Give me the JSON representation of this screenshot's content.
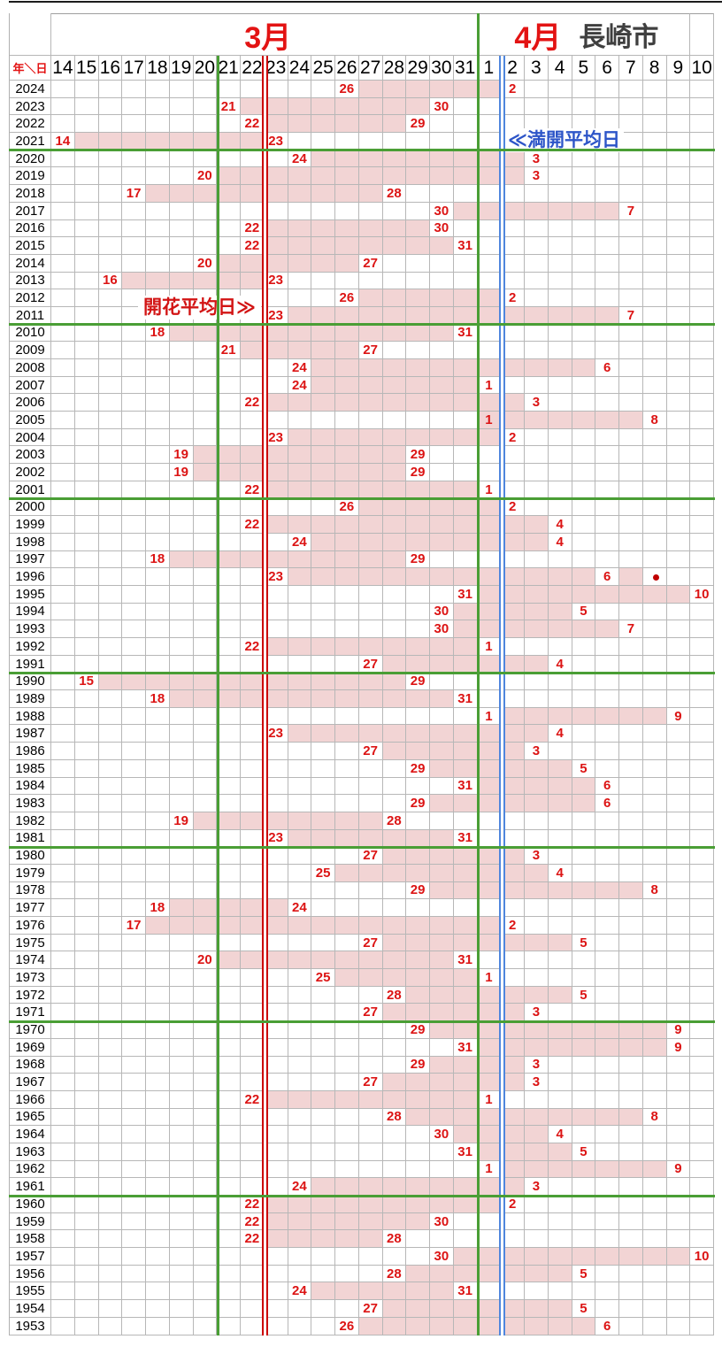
{
  "header": {
    "march": "3月",
    "april": "4月",
    "city": "長崎市",
    "corner": "年＼日"
  },
  "annotations": {
    "flowering_avg": "開花平均日≫",
    "full_bloom_avg": "≪満開平均日"
  },
  "colors": {
    "bar": "#f2d4d4",
    "number_red": "#dc1414",
    "grid": "#b7b7b7",
    "green_line": "#4a9e35",
    "red_line": "#cc0000",
    "blue_line": "#4f86dd",
    "blue_text": "#2d55c8",
    "month_red": "#e31313",
    "city_text": "#3f3f3f"
  },
  "chart_data": {
    "type": "range-bar calendar (flowering to full-bloom dates per year)",
    "title": "長崎市",
    "x_axis": {
      "march_days": [
        14,
        15,
        16,
        17,
        18,
        19,
        20,
        21,
        22,
        23,
        24,
        25,
        26,
        27,
        28,
        29,
        30,
        31
      ],
      "april_days": [
        1,
        2,
        3,
        4,
        5,
        6,
        7,
        8,
        9,
        10
      ]
    },
    "reference_lines": [
      {
        "name": "green-left",
        "after_date": "3/21",
        "style": "green",
        "from_table_top": false
      },
      {
        "name": "flowering-average",
        "after_date": "3/23",
        "style": "red-double",
        "from_table_top": false
      },
      {
        "name": "month-boundary",
        "after_date": "4/1",
        "style": "green",
        "from_table_top": true
      },
      {
        "name": "full-bloom-average",
        "after_date": "4/2",
        "style": "blue-double",
        "from_table_top": false
      }
    ],
    "decade_separators_below_year": [
      2021,
      2011,
      2001,
      1991,
      1981,
      1971,
      1961
    ],
    "extra_marker": {
      "year": 1996,
      "date": "4/8",
      "type": "red-dot"
    },
    "extra_bar_cells": [
      {
        "year": 2005,
        "date": "4/1"
      },
      {
        "year": 1996,
        "date": "4/7"
      }
    ],
    "rows": [
      {
        "year": 2024,
        "flowering": "3/26",
        "full_bloom": "4/2"
      },
      {
        "year": 2023,
        "flowering": "3/21",
        "full_bloom": "3/30"
      },
      {
        "year": 2022,
        "flowering": "3/22",
        "full_bloom": "3/29"
      },
      {
        "year": 2021,
        "flowering": "3/14",
        "full_bloom": "3/23"
      },
      {
        "year": 2020,
        "flowering": "3/24",
        "full_bloom": "4/3"
      },
      {
        "year": 2019,
        "flowering": "3/20",
        "full_bloom": "4/3"
      },
      {
        "year": 2018,
        "flowering": "3/17",
        "full_bloom": "3/28"
      },
      {
        "year": 2017,
        "flowering": "3/30",
        "full_bloom": "4/7"
      },
      {
        "year": 2016,
        "flowering": "3/22",
        "full_bloom": "3/30"
      },
      {
        "year": 2015,
        "flowering": "3/22",
        "full_bloom": "3/31"
      },
      {
        "year": 2014,
        "flowering": "3/20",
        "full_bloom": "3/27"
      },
      {
        "year": 2013,
        "flowering": "3/16",
        "full_bloom": "3/23"
      },
      {
        "year": 2012,
        "flowering": "3/26",
        "full_bloom": "4/2"
      },
      {
        "year": 2011,
        "flowering": "3/23",
        "full_bloom": "4/7"
      },
      {
        "year": 2010,
        "flowering": "3/18",
        "full_bloom": "3/31"
      },
      {
        "year": 2009,
        "flowering": "3/21",
        "full_bloom": "3/27"
      },
      {
        "year": 2008,
        "flowering": "3/24",
        "full_bloom": "4/6"
      },
      {
        "year": 2007,
        "flowering": "3/24",
        "full_bloom": "4/1"
      },
      {
        "year": 2006,
        "flowering": "3/22",
        "full_bloom": "4/3"
      },
      {
        "year": 2005,
        "flowering": "4/1",
        "full_bloom": "4/8"
      },
      {
        "year": 2004,
        "flowering": "3/23",
        "full_bloom": "4/2"
      },
      {
        "year": 2003,
        "flowering": "3/19",
        "full_bloom": "3/29"
      },
      {
        "year": 2002,
        "flowering": "3/19",
        "full_bloom": "3/29"
      },
      {
        "year": 2001,
        "flowering": "3/22",
        "full_bloom": "4/1"
      },
      {
        "year": 2000,
        "flowering": "3/26",
        "full_bloom": "4/2"
      },
      {
        "year": 1999,
        "flowering": "3/22",
        "full_bloom": "4/4"
      },
      {
        "year": 1998,
        "flowering": "3/24",
        "full_bloom": "4/4"
      },
      {
        "year": 1997,
        "flowering": "3/18",
        "full_bloom": "3/29"
      },
      {
        "year": 1996,
        "flowering": "3/23",
        "full_bloom": "4/6"
      },
      {
        "year": 1995,
        "flowering": "3/31",
        "full_bloom": "4/10"
      },
      {
        "year": 1994,
        "flowering": "3/30",
        "full_bloom": "4/5"
      },
      {
        "year": 1993,
        "flowering": "3/30",
        "full_bloom": "4/7"
      },
      {
        "year": 1992,
        "flowering": "3/22",
        "full_bloom": "4/1"
      },
      {
        "year": 1991,
        "flowering": "3/27",
        "full_bloom": "4/4"
      },
      {
        "year": 1990,
        "flowering": "3/15",
        "full_bloom": "3/29"
      },
      {
        "year": 1989,
        "flowering": "3/18",
        "full_bloom": "3/31"
      },
      {
        "year": 1988,
        "flowering": "4/1",
        "full_bloom": "4/9"
      },
      {
        "year": 1987,
        "flowering": "3/23",
        "full_bloom": "4/4"
      },
      {
        "year": 1986,
        "flowering": "3/27",
        "full_bloom": "4/3"
      },
      {
        "year": 1985,
        "flowering": "3/29",
        "full_bloom": "4/5"
      },
      {
        "year": 1984,
        "flowering": "3/31",
        "full_bloom": "4/6"
      },
      {
        "year": 1983,
        "flowering": "3/29",
        "full_bloom": "4/6"
      },
      {
        "year": 1982,
        "flowering": "3/19",
        "full_bloom": "3/28"
      },
      {
        "year": 1981,
        "flowering": "3/23",
        "full_bloom": "3/31"
      },
      {
        "year": 1980,
        "flowering": "3/27",
        "full_bloom": "4/3"
      },
      {
        "year": 1979,
        "flowering": "3/25",
        "full_bloom": "4/4"
      },
      {
        "year": 1978,
        "flowering": "3/29",
        "full_bloom": "4/8"
      },
      {
        "year": 1977,
        "flowering": "3/18",
        "full_bloom": "3/24"
      },
      {
        "year": 1976,
        "flowering": "3/17",
        "full_bloom": "4/2"
      },
      {
        "year": 1975,
        "flowering": "3/27",
        "full_bloom": "4/5"
      },
      {
        "year": 1974,
        "flowering": "3/20",
        "full_bloom": "3/31"
      },
      {
        "year": 1973,
        "flowering": "3/25",
        "full_bloom": "4/1"
      },
      {
        "year": 1972,
        "flowering": "3/28",
        "full_bloom": "4/5"
      },
      {
        "year": 1971,
        "flowering": "3/27",
        "full_bloom": "4/3"
      },
      {
        "year": 1970,
        "flowering": "3/29",
        "full_bloom": "4/9"
      },
      {
        "year": 1969,
        "flowering": "3/31",
        "full_bloom": "4/9"
      },
      {
        "year": 1968,
        "flowering": "3/29",
        "full_bloom": "4/3"
      },
      {
        "year": 1967,
        "flowering": "3/27",
        "full_bloom": "4/3"
      },
      {
        "year": 1966,
        "flowering": "3/22",
        "full_bloom": "4/1"
      },
      {
        "year": 1965,
        "flowering": "3/28",
        "full_bloom": "4/8"
      },
      {
        "year": 1964,
        "flowering": "3/30",
        "full_bloom": "4/4"
      },
      {
        "year": 1963,
        "flowering": "3/31",
        "full_bloom": "4/5"
      },
      {
        "year": 1962,
        "flowering": "4/1",
        "full_bloom": "4/9"
      },
      {
        "year": 1961,
        "flowering": "3/24",
        "full_bloom": "4/3"
      },
      {
        "year": 1960,
        "flowering": "3/22",
        "full_bloom": "4/2"
      },
      {
        "year": 1959,
        "flowering": "3/22",
        "full_bloom": "3/30"
      },
      {
        "year": 1958,
        "flowering": "3/22",
        "full_bloom": "3/28"
      },
      {
        "year": 1957,
        "flowering": "3/30",
        "full_bloom": "4/10"
      },
      {
        "year": 1956,
        "flowering": "3/28",
        "full_bloom": "4/5"
      },
      {
        "year": 1955,
        "flowering": "3/24",
        "full_bloom": "3/31"
      },
      {
        "year": 1954,
        "flowering": "3/27",
        "full_bloom": "4/5"
      },
      {
        "year": 1953,
        "flowering": "3/26",
        "full_bloom": "4/6"
      }
    ]
  }
}
